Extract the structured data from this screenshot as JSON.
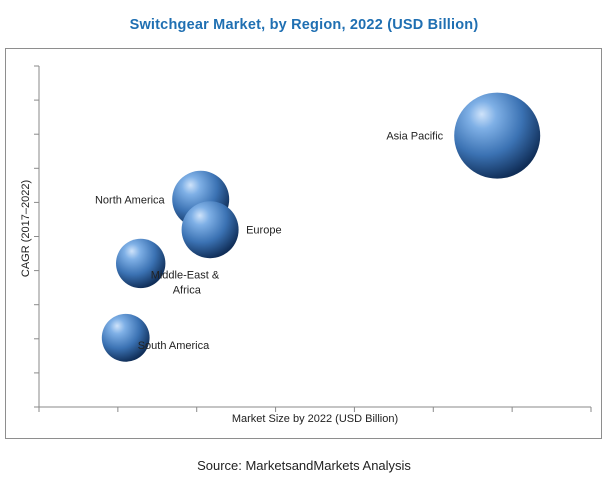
{
  "chart_data": {
    "type": "bubble",
    "title": "Switchgear Market, by Region, 2022 (USD Billion)",
    "xlabel": "Market Size by 2022 (USD Billion)",
    "ylabel": "CAGR (2017–2022)",
    "tick_labels_shown": false,
    "grid": false,
    "legend": "none",
    "x_ticks": 7,
    "y_ticks": 10,
    "bubble_color": "#3f78b5",
    "points": [
      {
        "label": "Asia Pacific",
        "x": 5.81,
        "y": 7.96,
        "size": 1.0
      },
      {
        "label": "North America",
        "x": 2.05,
        "y": 6.09,
        "size": 0.44
      },
      {
        "label": "Europe",
        "x": 2.17,
        "y": 5.2,
        "size": 0.44
      },
      {
        "label": "Middle-East & Africa",
        "x": 1.29,
        "y": 4.21,
        "size": 0.33
      },
      {
        "label": "South America",
        "x": 1.1,
        "y": 2.03,
        "size": 0.31
      }
    ]
  },
  "source": "Source: MarketsandMarkets Analysis"
}
